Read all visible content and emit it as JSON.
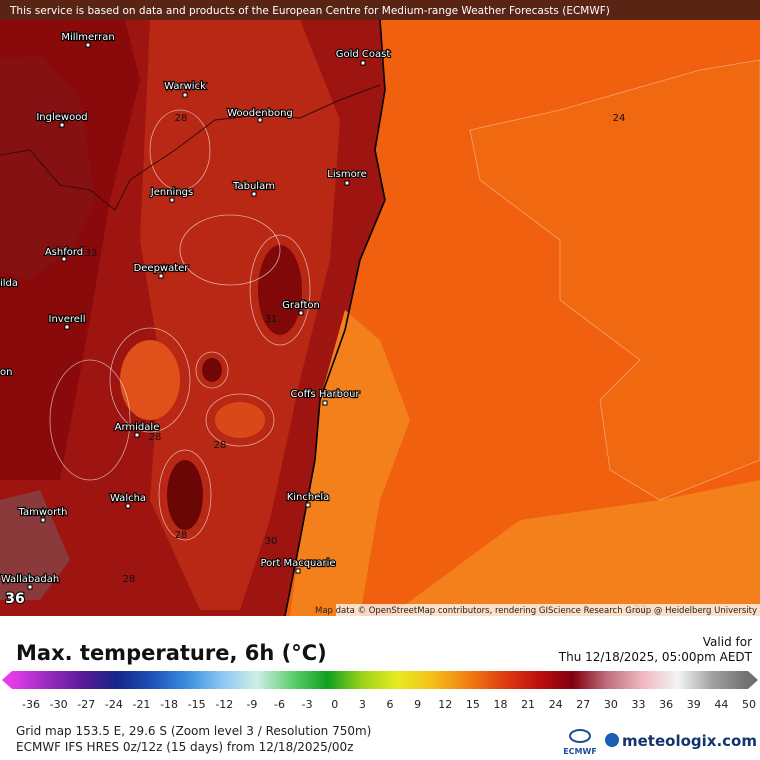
{
  "banner": "This service is based on data and products of the European Centre for Medium-range Weather Forecasts (ECMWF)",
  "map": {
    "places": [
      "Millmerran",
      "Gold Coast",
      "Warwick",
      "Inglewood",
      "Woodenbong",
      "Lismore",
      "Jennings",
      "Tabulam",
      "Ashford",
      "Deepwater",
      "Grafton",
      "Inverell",
      "Coffs Harbour",
      "Armidale",
      "Walcha",
      "Kinchela",
      "Tamworth",
      "Port Macquarie",
      "Wallabadah",
      "ilda",
      "on"
    ],
    "contour_labels": [
      24,
      28,
      33,
      31,
      28,
      28,
      28,
      30,
      28,
      36,
      27
    ],
    "attribution": "Map data © OpenStreetMap contributors, rendering GIScience Research Group @ Heidelberg University"
  },
  "legend": {
    "title": "Max. temperature, 6h (°C)",
    "valid_label": "Valid for",
    "valid_time": "Thu 12/18/2025, 05:00pm AEDT",
    "ticks": [
      -36,
      -30,
      -27,
      -24,
      -21,
      -18,
      -15,
      -12,
      -9,
      -6,
      -3,
      0,
      3,
      6,
      9,
      12,
      15,
      18,
      21,
      24,
      27,
      30,
      33,
      36,
      39,
      44,
      50
    ],
    "colors": [
      "#e43ce8",
      "#9a2cc0",
      "#5a1a98",
      "#16258a",
      "#1d52b8",
      "#3b8ee0",
      "#8cc8f4",
      "#cdeee4",
      "#5fcf6f",
      "#10a020",
      "#9cd418",
      "#e8ec20",
      "#f4c018",
      "#f08010",
      "#e04010",
      "#c01010",
      "#800010",
      "#c07080",
      "#f0b8c0",
      "#f4f4f4",
      "#a0a0a0",
      "#707070"
    ]
  },
  "footer": {
    "grid": "Grid map 153.5 E, 29.6 S (Zoom level 3 / Resolution 750m)",
    "model": "ECMWF IFS HRES 0z/12z (15 days) from 12/18/2025/00z",
    "ecmwf_logo": "ECMWF",
    "brand": "meteologix.com"
  }
}
